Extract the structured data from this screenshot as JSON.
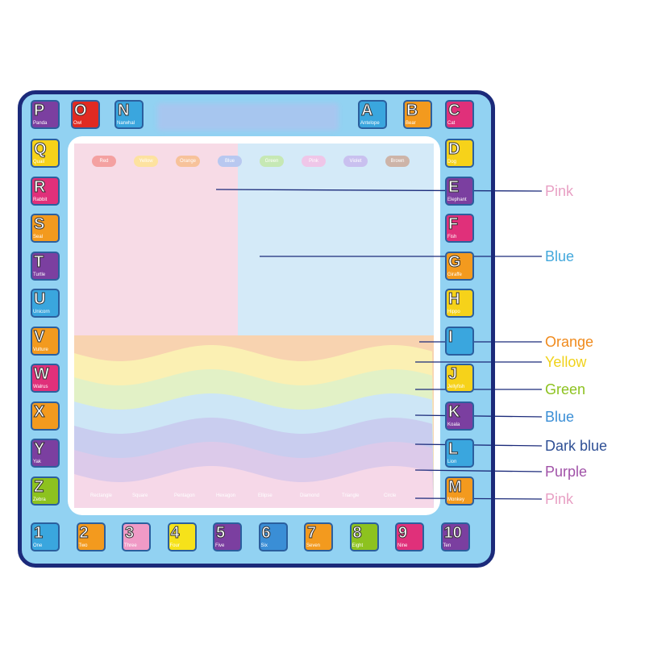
{
  "palette": [
    {
      "name": "Red",
      "color": "#f4a1a1"
    },
    {
      "name": "Yellow",
      "color": "#fde2a0"
    },
    {
      "name": "Orange",
      "color": "#f7c29a"
    },
    {
      "name": "Blue",
      "color": "#b8c8f0"
    },
    {
      "name": "Green",
      "color": "#c6e8b4"
    },
    {
      "name": "Pink",
      "color": "#efc6e8"
    },
    {
      "name": "Violet",
      "color": "#c9c0ef"
    },
    {
      "name": "Brown",
      "color": "#cdb4a8"
    }
  ],
  "regions": [
    {
      "label": "Pink",
      "color": "#e8a0c4"
    },
    {
      "label": "Blue",
      "color": "#43a8dc"
    },
    {
      "label": "Orange",
      "color": "#f08a1c"
    },
    {
      "label": "Yellow",
      "color": "#f0d21a"
    },
    {
      "label": "Green",
      "color": "#8dc21f"
    },
    {
      "label": "Blue",
      "color": "#3a8ed6"
    },
    {
      "label": "Dark blue",
      "color": "#2e4f95"
    },
    {
      "label": "Purple",
      "color": "#a152a8"
    },
    {
      "label": "Pink",
      "color": "#e8a0c4"
    }
  ],
  "top_tiles": [
    {
      "letter": "P",
      "caption": "Panda",
      "color": "#7b3fa0"
    },
    {
      "letter": "O",
      "caption": "Owl",
      "color": "#e02a22"
    },
    {
      "letter": "N",
      "caption": "Narwhal",
      "color": "#3aa6de"
    },
    {
      "letter": "A",
      "caption": "Antelope",
      "color": "#3aa6de"
    },
    {
      "letter": "B",
      "caption": "Bear",
      "color": "#f39a1e"
    },
    {
      "letter": "C",
      "caption": "Cat",
      "color": "#e0307a"
    }
  ],
  "left_tiles": [
    {
      "letter": "Q",
      "caption": "Quail",
      "color": "#f6d21a"
    },
    {
      "letter": "R",
      "caption": "Rabbit",
      "color": "#e0307a"
    },
    {
      "letter": "S",
      "caption": "Seal",
      "color": "#f39a1e"
    },
    {
      "letter": "T",
      "caption": "Turtle",
      "color": "#7b3fa0"
    },
    {
      "letter": "U",
      "caption": "Unicorn",
      "color": "#3aa6de"
    },
    {
      "letter": "V",
      "caption": "Vulture",
      "color": "#f39a1e"
    },
    {
      "letter": "W",
      "caption": "Walrus",
      "color": "#e0307a"
    },
    {
      "letter": "X",
      "caption": "",
      "color": "#f39a1e"
    },
    {
      "letter": "Y",
      "caption": "Yak",
      "color": "#7b3fa0"
    },
    {
      "letter": "Z",
      "caption": "Zebra",
      "color": "#8dc21f"
    }
  ],
  "right_tiles": [
    {
      "letter": "D",
      "caption": "Dog",
      "color": "#f6d21a"
    },
    {
      "letter": "E",
      "caption": "Elephant",
      "color": "#7b3fa0"
    },
    {
      "letter": "F",
      "caption": "Fish",
      "color": "#e0307a"
    },
    {
      "letter": "G",
      "caption": "Giraffe",
      "color": "#f39a1e"
    },
    {
      "letter": "H",
      "caption": "Hippo",
      "color": "#f6d21a"
    },
    {
      "letter": "I",
      "caption": "",
      "color": "#3aa6de"
    },
    {
      "letter": "J",
      "caption": "Jellyfish",
      "color": "#f6d21a"
    },
    {
      "letter": "K",
      "caption": "Koala",
      "color": "#7b3fa0"
    },
    {
      "letter": "L",
      "caption": "Lion",
      "color": "#3aa6de"
    },
    {
      "letter": "M",
      "caption": "Monkey",
      "color": "#f39a1e"
    }
  ],
  "number_tiles": [
    {
      "n": "1",
      "caption": "One",
      "color": "#3aa6de"
    },
    {
      "n": "2",
      "caption": "Two",
      "color": "#f39a1e"
    },
    {
      "n": "3",
      "caption": "Three",
      "color": "#f09ac6"
    },
    {
      "n": "4",
      "caption": "Four",
      "color": "#f6e21a"
    },
    {
      "n": "5",
      "caption": "Five",
      "color": "#7b3fa0"
    },
    {
      "n": "6",
      "caption": "Six",
      "color": "#3a8ed6"
    },
    {
      "n": "7",
      "caption": "Seven",
      "color": "#f39a1e"
    },
    {
      "n": "8",
      "caption": "Eight",
      "color": "#8dc21f"
    },
    {
      "n": "9",
      "caption": "Nine",
      "color": "#e0307a"
    },
    {
      "n": "10",
      "caption": "Ten",
      "color": "#7b3fa0"
    }
  ],
  "shapes": [
    "Rectangle",
    "Square",
    "Pentagon",
    "Hexagon",
    "Ellipse",
    "Diamond",
    "Triangle",
    "Circle"
  ]
}
